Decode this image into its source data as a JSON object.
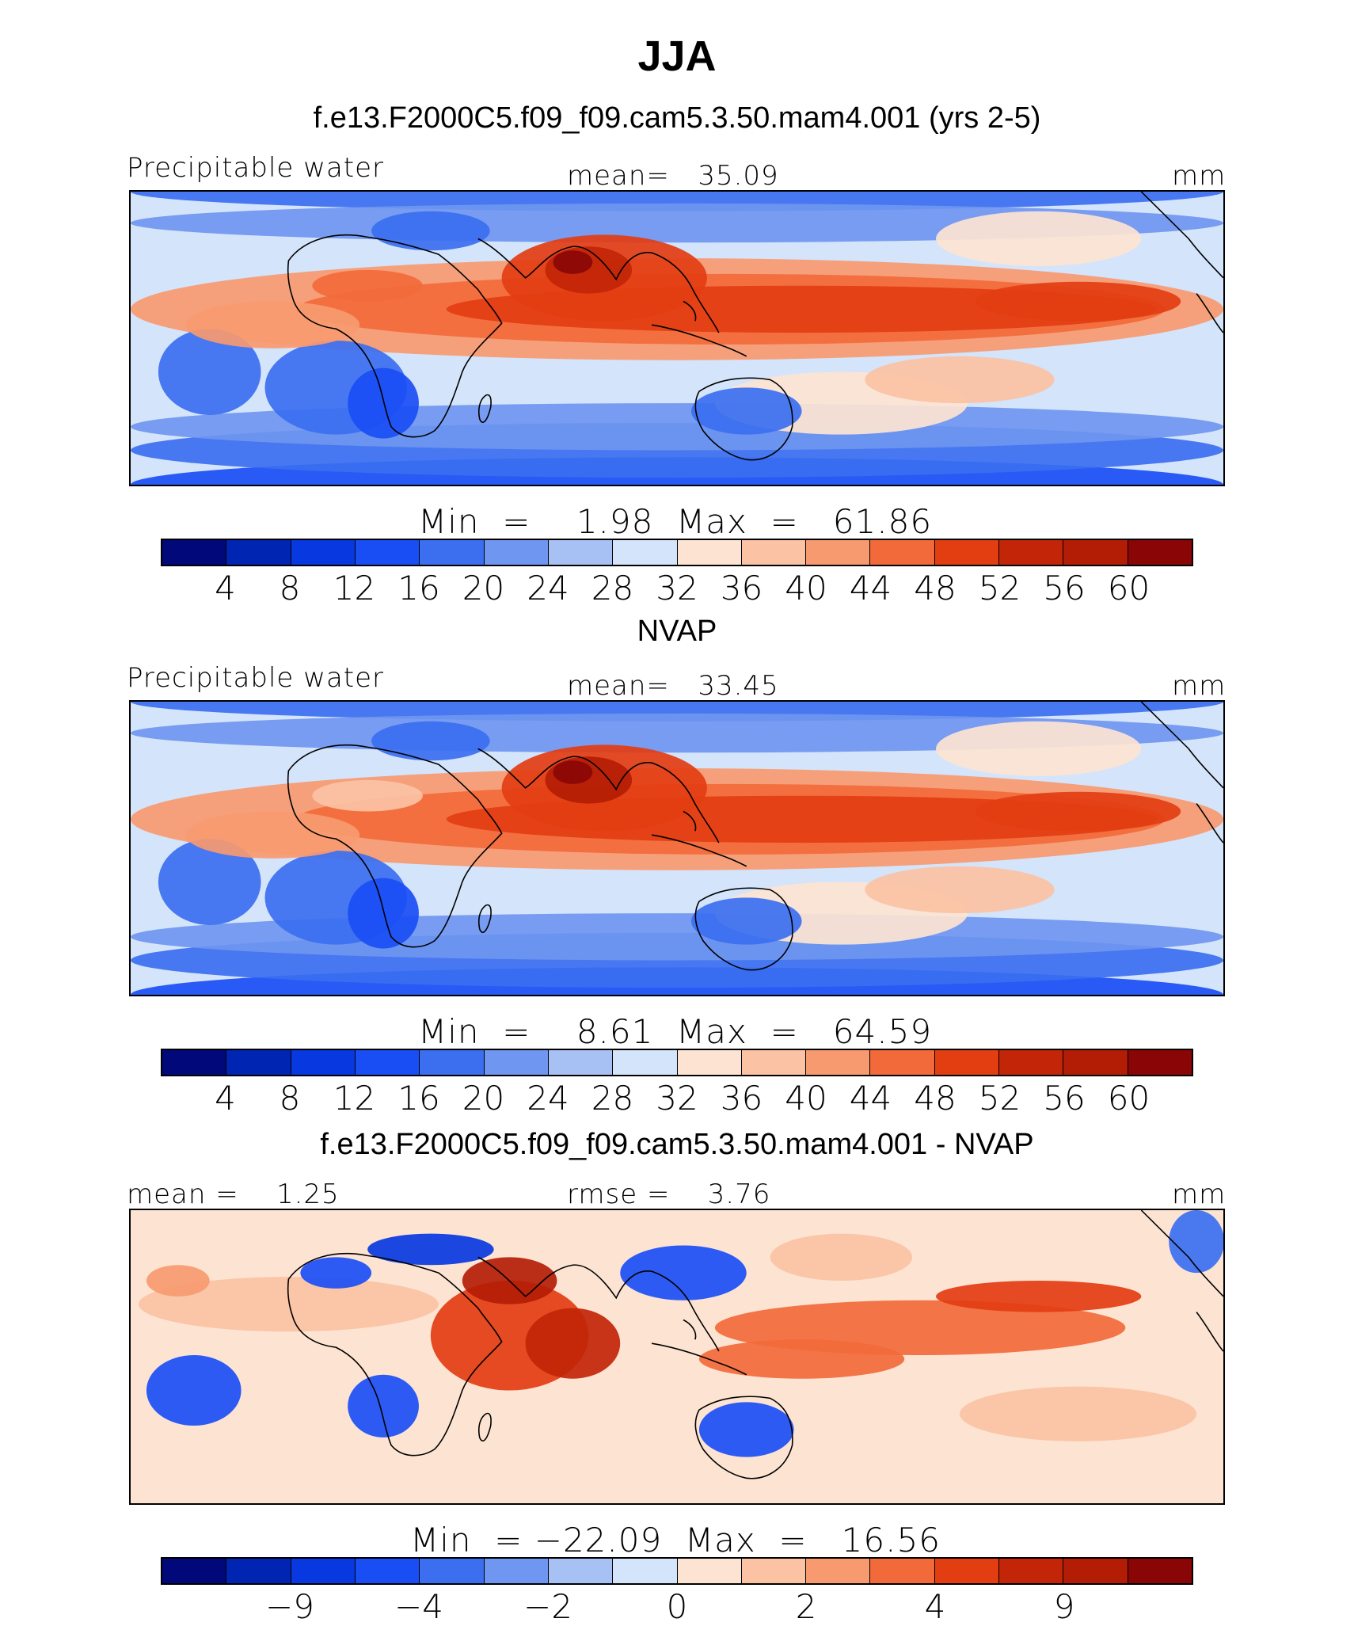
{
  "figure": {
    "season": "JJA"
  },
  "panels": [
    {
      "title": "f.e13.F2000C5.f09_f09.cam5.3.50.mam4.001 (yrs 2-5)",
      "left_label": "Precipitable water",
      "center_label": "mean=   35.09",
      "units": "mm",
      "minmax": "Min  =    1.98  Max  =   61.86",
      "colorbar_ticks": [
        "4",
        "8",
        "12",
        "16",
        "20",
        "24",
        "28",
        "32",
        "36",
        "40",
        "44",
        "48",
        "52",
        "56",
        "60"
      ],
      "colors": [
        "#00087a",
        "#0025b2",
        "#0838e0",
        "#1a4ef5",
        "#3b6ff0",
        "#6f96f0",
        "#a8c1f5",
        "#d4e4fa",
        "#fde4d2",
        "#fbc2a4",
        "#f79a70",
        "#f26a3a",
        "#e33d12",
        "#c22508",
        "#b41d05",
        "#8a0606"
      ]
    },
    {
      "title": "NVAP",
      "left_label": "Precipitable water",
      "center_label": "mean=   33.45",
      "units": "mm",
      "minmax": "Min  =    8.61  Max  =   64.59",
      "colorbar_ticks": [
        "4",
        "8",
        "12",
        "16",
        "20",
        "24",
        "28",
        "32",
        "36",
        "40",
        "44",
        "48",
        "52",
        "56",
        "60"
      ],
      "colors": [
        "#00087a",
        "#0025b2",
        "#0838e0",
        "#1a4ef5",
        "#3b6ff0",
        "#6f96f0",
        "#a8c1f5",
        "#d4e4fa",
        "#fde4d2",
        "#fbc2a4",
        "#f79a70",
        "#f26a3a",
        "#e33d12",
        "#c22508",
        "#b41d05",
        "#8a0606"
      ]
    },
    {
      "title": "f.e13.F2000C5.f09_f09.cam5.3.50.mam4.001 - NVAP",
      "left_label": "mean =    1.25",
      "center_label": "rmse =    3.76",
      "units": "mm",
      "minmax": "Min  = −22.09  Max  =   16.56",
      "colorbar_ticks": [
        "−9",
        "−4",
        "−2",
        "0",
        "2",
        "4",
        "9"
      ],
      "colors": [
        "#00087a",
        "#0025b2",
        "#0838e0",
        "#1a4ef5",
        "#3b6ff0",
        "#6f96f0",
        "#a8c1f5",
        "#d4e4fa",
        "#fde4d2",
        "#fbc2a4",
        "#f79a70",
        "#f26a3a",
        "#e33d12",
        "#c22508",
        "#b41d05",
        "#8a0606"
      ]
    }
  ]
}
